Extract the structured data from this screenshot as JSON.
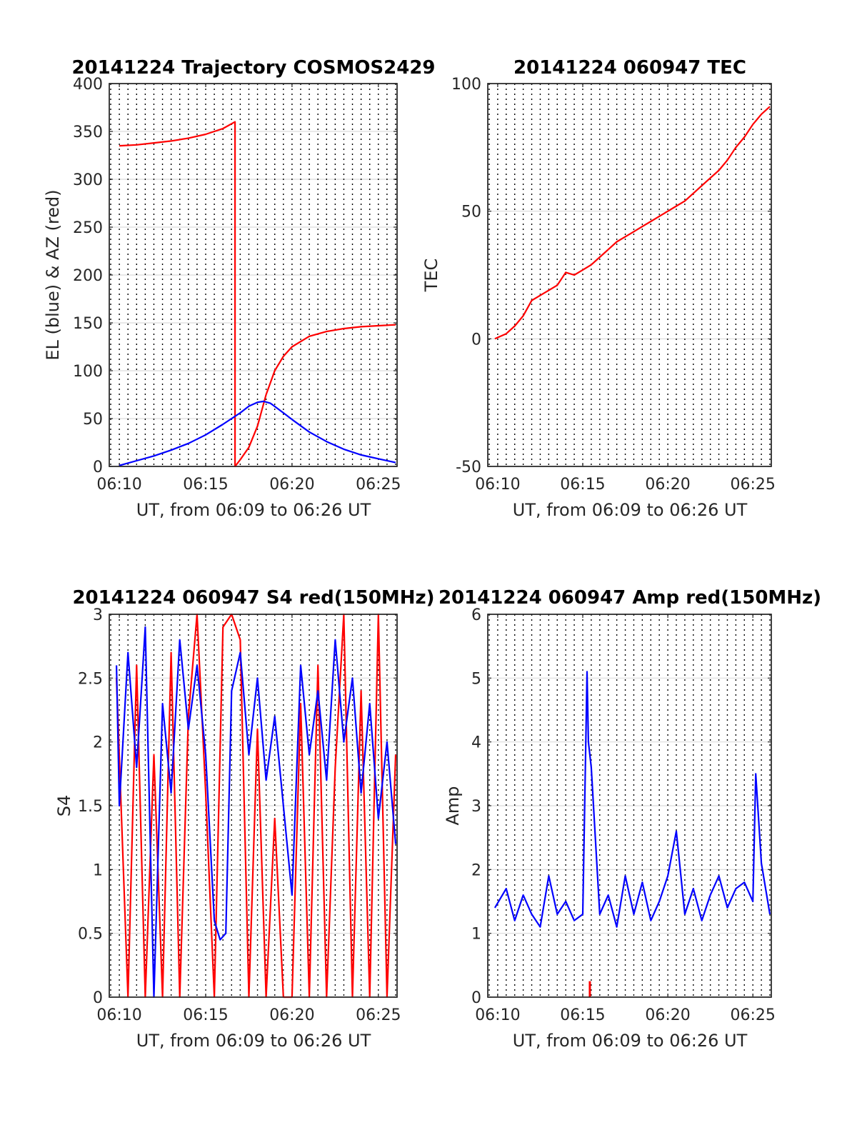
{
  "colors": {
    "red": "#ff0000",
    "blue": "#0000ff",
    "grid": "#dcdcdc"
  },
  "chart_data": [
    {
      "type": "line",
      "title": "20141224 Trajectory COSMOS2429",
      "xlabel": "UT, from 06:09 to 06:26 UT",
      "ylabel": "EL (blue) & AZ (red)",
      "xlim": [
        "06:09:25",
        "06:26:05"
      ],
      "ylim": [
        0,
        400
      ],
      "yticks": [
        0,
        50,
        100,
        150,
        200,
        250,
        300,
        350,
        400
      ],
      "xticks": [
        "06:10",
        "06:15",
        "06:20",
        "06:25"
      ],
      "grid": "vertical dotted lines each 30 s, horizontal at y ticks",
      "series": [
        {
          "color": "red",
          "x": [
            "06:10:00",
            "06:11:00",
            "06:12:00",
            "06:13:00",
            "06:14:00",
            "06:15:00",
            "06:16:00",
            "06:16:42",
            "06:16:42",
            "06:17:00",
            "06:17:30",
            "06:18:00",
            "06:18:30",
            "06:19:00",
            "06:19:30",
            "06:20:00",
            "06:21:00",
            "06:22:00",
            "06:23:00",
            "06:24:00",
            "06:25:00",
            "06:26:00"
          ],
          "y": [
            335,
            336,
            338,
            340,
            343,
            347,
            353,
            360,
            0,
            7,
            20,
            42,
            75,
            100,
            115,
            125,
            136,
            141,
            144,
            146,
            147,
            148
          ]
        },
        {
          "color": "blue",
          "x": [
            "06:10:00",
            "06:11:00",
            "06:12:00",
            "06:13:00",
            "06:14:00",
            "06:15:00",
            "06:16:00",
            "06:17:00",
            "06:17:30",
            "06:18:00",
            "06:18:22",
            "06:18:45",
            "06:19:30",
            "06:20:00",
            "06:21:00",
            "06:22:00",
            "06:23:00",
            "06:24:00",
            "06:25:00",
            "06:26:00"
          ],
          "y": [
            1,
            6,
            11,
            17,
            24,
            33,
            44,
            56,
            63,
            67,
            68,
            66,
            56,
            49,
            36,
            26,
            18,
            12,
            8,
            4
          ]
        }
      ]
    },
    {
      "type": "line",
      "title": "20141224 060947 TEC",
      "xlabel": "UT, from 06:09 to 06:26 UT",
      "ylabel": "TEC",
      "xlim": [
        "06:09:25",
        "06:26:05"
      ],
      "ylim": [
        -50,
        100
      ],
      "yticks": [
        -50,
        0,
        50,
        100
      ],
      "xticks": [
        "06:10",
        "06:15",
        "06:20",
        "06:25"
      ],
      "series": [
        {
          "color": "red",
          "x": [
            "06:09:50",
            "06:10:30",
            "06:11:00",
            "06:11:30",
            "06:12:00",
            "06:12:30",
            "06:13:00",
            "06:13:30",
            "06:14:00",
            "06:14:30",
            "06:15:00",
            "06:15:30",
            "06:16:00",
            "06:16:30",
            "06:17:00",
            "06:17:30",
            "06:18:00",
            "06:18:30",
            "06:19:00",
            "06:19:30",
            "06:20:00",
            "06:20:30",
            "06:21:00",
            "06:21:30",
            "06:22:00",
            "06:22:30",
            "06:23:00",
            "06:23:30",
            "06:24:00",
            "06:24:30",
            "06:25:00",
            "06:25:30",
            "06:26:00"
          ],
          "y": [
            0,
            2,
            5,
            9,
            15,
            17,
            19,
            21,
            26,
            25,
            27,
            29,
            32,
            35,
            38,
            40,
            42,
            44,
            46,
            48,
            50,
            52,
            54,
            57,
            60,
            63,
            66,
            70,
            75,
            79,
            84,
            88,
            91
          ]
        }
      ]
    },
    {
      "type": "line",
      "title": "20141224 060947 S4 red(150MHz)",
      "xlabel": "UT, from 06:09 to 06:26 UT",
      "ylabel": "S4",
      "xlim": [
        "06:09:25",
        "06:26:05"
      ],
      "ylim": [
        0,
        3
      ],
      "yticks": [
        0,
        0.5,
        1,
        1.5,
        2,
        2.5,
        3
      ],
      "xticks": [
        "06:10",
        "06:15",
        "06:20",
        "06:25"
      ],
      "series": [
        {
          "color": "red",
          "x": [
            "06:09:50",
            "06:10:30",
            "06:11:00",
            "06:11:30",
            "06:12:00",
            "06:12:30",
            "06:13:00",
            "06:13:30",
            "06:14:00",
            "06:14:30",
            "06:15:00",
            "06:15:30",
            "06:16:00",
            "06:16:30",
            "06:17:00",
            "06:17:30",
            "06:18:00",
            "06:18:30",
            "06:19:00",
            "06:19:30",
            "06:20:00",
            "06:20:30",
            "06:21:00",
            "06:21:30",
            "06:22:00",
            "06:22:30",
            "06:23:00",
            "06:23:30",
            "06:24:00",
            "06:24:30",
            "06:25:00",
            "06:25:30",
            "06:26:00"
          ],
          "y": [
            2.5,
            0,
            2.6,
            0,
            1.9,
            0,
            2.7,
            0,
            2.2,
            3,
            1.6,
            0,
            2.9,
            3,
            2.8,
            0,
            2.1,
            0,
            1.4,
            0,
            0,
            2.3,
            0,
            2.6,
            0,
            1.8,
            3,
            0,
            2.4,
            0,
            3,
            0,
            1.9
          ]
        },
        {
          "color": "blue",
          "x": [
            "06:09:50",
            "06:10:00",
            "06:10:30",
            "06:11:00",
            "06:11:30",
            "06:12:00",
            "06:12:30",
            "06:13:00",
            "06:13:30",
            "06:14:00",
            "06:14:30",
            "06:15:00",
            "06:15:30",
            "06:15:50",
            "06:16:10",
            "06:16:30",
            "06:17:00",
            "06:17:30",
            "06:18:00",
            "06:18:30",
            "06:19:00",
            "06:19:30",
            "06:20:00",
            "06:20:30",
            "06:21:00",
            "06:21:30",
            "06:22:00",
            "06:22:30",
            "06:23:00",
            "06:23:30",
            "06:24:00",
            "06:24:30",
            "06:25:00",
            "06:25:30",
            "06:26:00"
          ],
          "y": [
            2.6,
            1.5,
            2.7,
            1.8,
            2.9,
            0,
            2.3,
            1.6,
            2.8,
            2.1,
            2.6,
            1.9,
            0.6,
            0.45,
            0.5,
            2.4,
            2.7,
            1.9,
            2.5,
            1.7,
            2.2,
            1.5,
            0.8,
            2.6,
            1.9,
            2.4,
            1.7,
            2.8,
            2.0,
            2.5,
            1.6,
            2.3,
            1.4,
            2.0,
            1.2
          ]
        }
      ]
    },
    {
      "type": "line",
      "title": "20141224 060947 Amp red(150MHz)",
      "xlabel": "UT, from 06:09 to 06:26 UT",
      "ylabel": "Amp",
      "xlim": [
        "06:09:25",
        "06:26:05"
      ],
      "ylim": [
        0,
        6
      ],
      "yticks": [
        0,
        1,
        2,
        3,
        4,
        5,
        6
      ],
      "xticks": [
        "06:10",
        "06:15",
        "06:20",
        "06:25"
      ],
      "series": [
        {
          "color": "blue",
          "x": [
            "06:09:50",
            "06:10:30",
            "06:11:00",
            "06:11:30",
            "06:12:00",
            "06:12:30",
            "06:13:00",
            "06:13:30",
            "06:14:00",
            "06:14:30",
            "06:15:00",
            "06:15:15",
            "06:15:20",
            "06:15:30",
            "06:16:00",
            "06:16:30",
            "06:17:00",
            "06:17:30",
            "06:18:00",
            "06:18:30",
            "06:19:00",
            "06:19:30",
            "06:20:00",
            "06:20:30",
            "06:21:00",
            "06:21:30",
            "06:22:00",
            "06:22:30",
            "06:23:00",
            "06:23:30",
            "06:24:00",
            "06:24:30",
            "06:25:00",
            "06:25:10",
            "06:25:30",
            "06:26:00"
          ],
          "y": [
            1.4,
            1.7,
            1.2,
            1.6,
            1.3,
            1.1,
            1.9,
            1.3,
            1.5,
            1.2,
            1.3,
            5.1,
            4.0,
            3.6,
            1.3,
            1.6,
            1.1,
            1.9,
            1.3,
            1.8,
            1.2,
            1.5,
            1.9,
            2.6,
            1.3,
            1.7,
            1.2,
            1.6,
            1.9,
            1.4,
            1.7,
            1.8,
            1.5,
            3.5,
            2.1,
            1.3
          ]
        },
        {
          "color": "red",
          "x": [
            "06:15:25"
          ],
          "y": [
            0.25
          ]
        }
      ]
    }
  ]
}
